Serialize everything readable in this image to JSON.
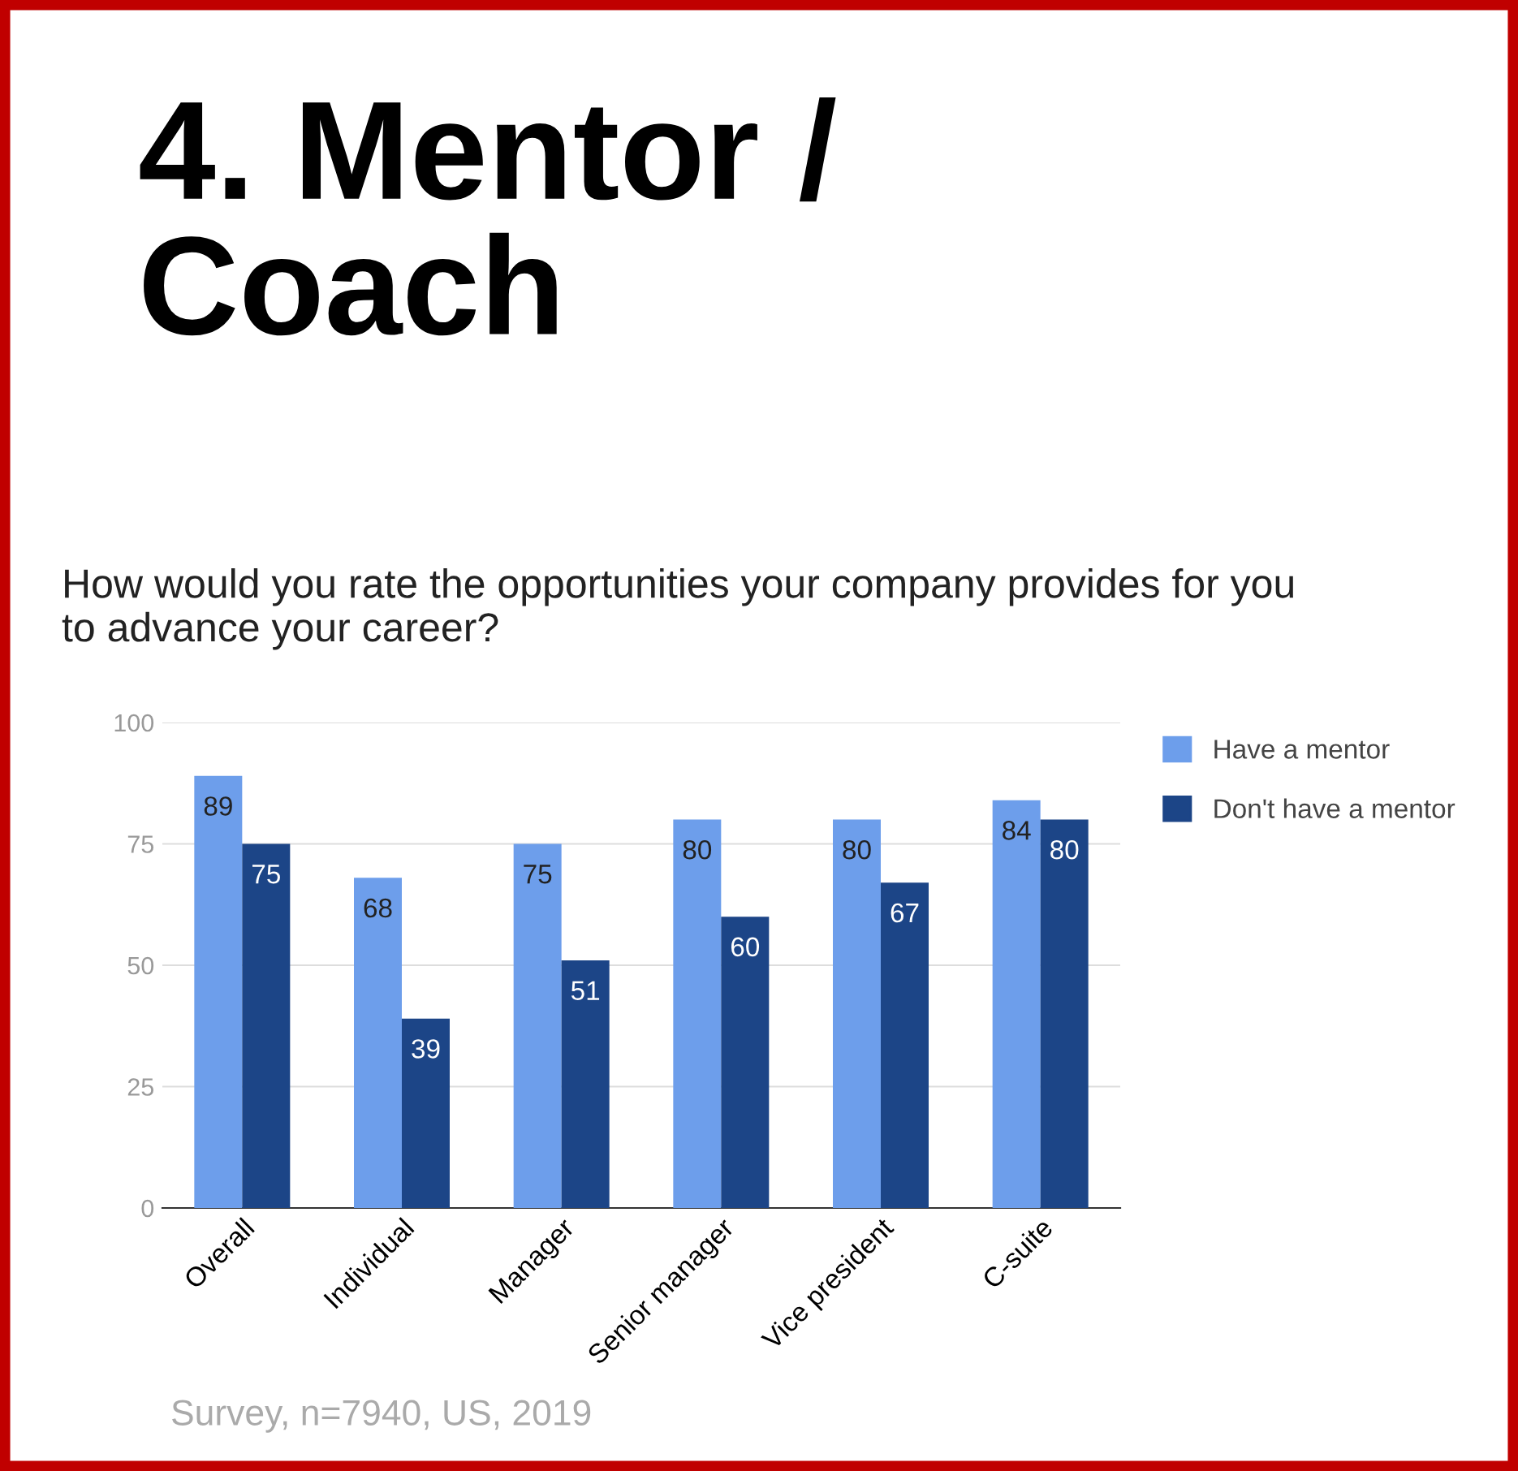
{
  "chart_data": {
    "type": "bar",
    "title": "4. Mentor /\nCoach",
    "subtitle": "How would you rate the opportunities your company provides for you\nto advance your career?",
    "categories": [
      "Overall",
      "Individual",
      "Manager",
      "Senior manager",
      "Vice president",
      "C-suite"
    ],
    "series": [
      {
        "name": "Have a mentor",
        "color": "#6d9eeb",
        "values": [
          89,
          68,
          75,
          80,
          80,
          84
        ]
      },
      {
        "name": "Don't have a mentor",
        "color": "#1c4587",
        "values": [
          75,
          39,
          51,
          60,
          67,
          80
        ]
      }
    ],
    "ylim": [
      0,
      100
    ],
    "yticks": [
      0,
      25,
      50,
      75,
      100
    ],
    "grid": "y",
    "legend": "right",
    "data_labels": true,
    "annotations": [
      "Survey, n=7940, US, 2019"
    ]
  }
}
